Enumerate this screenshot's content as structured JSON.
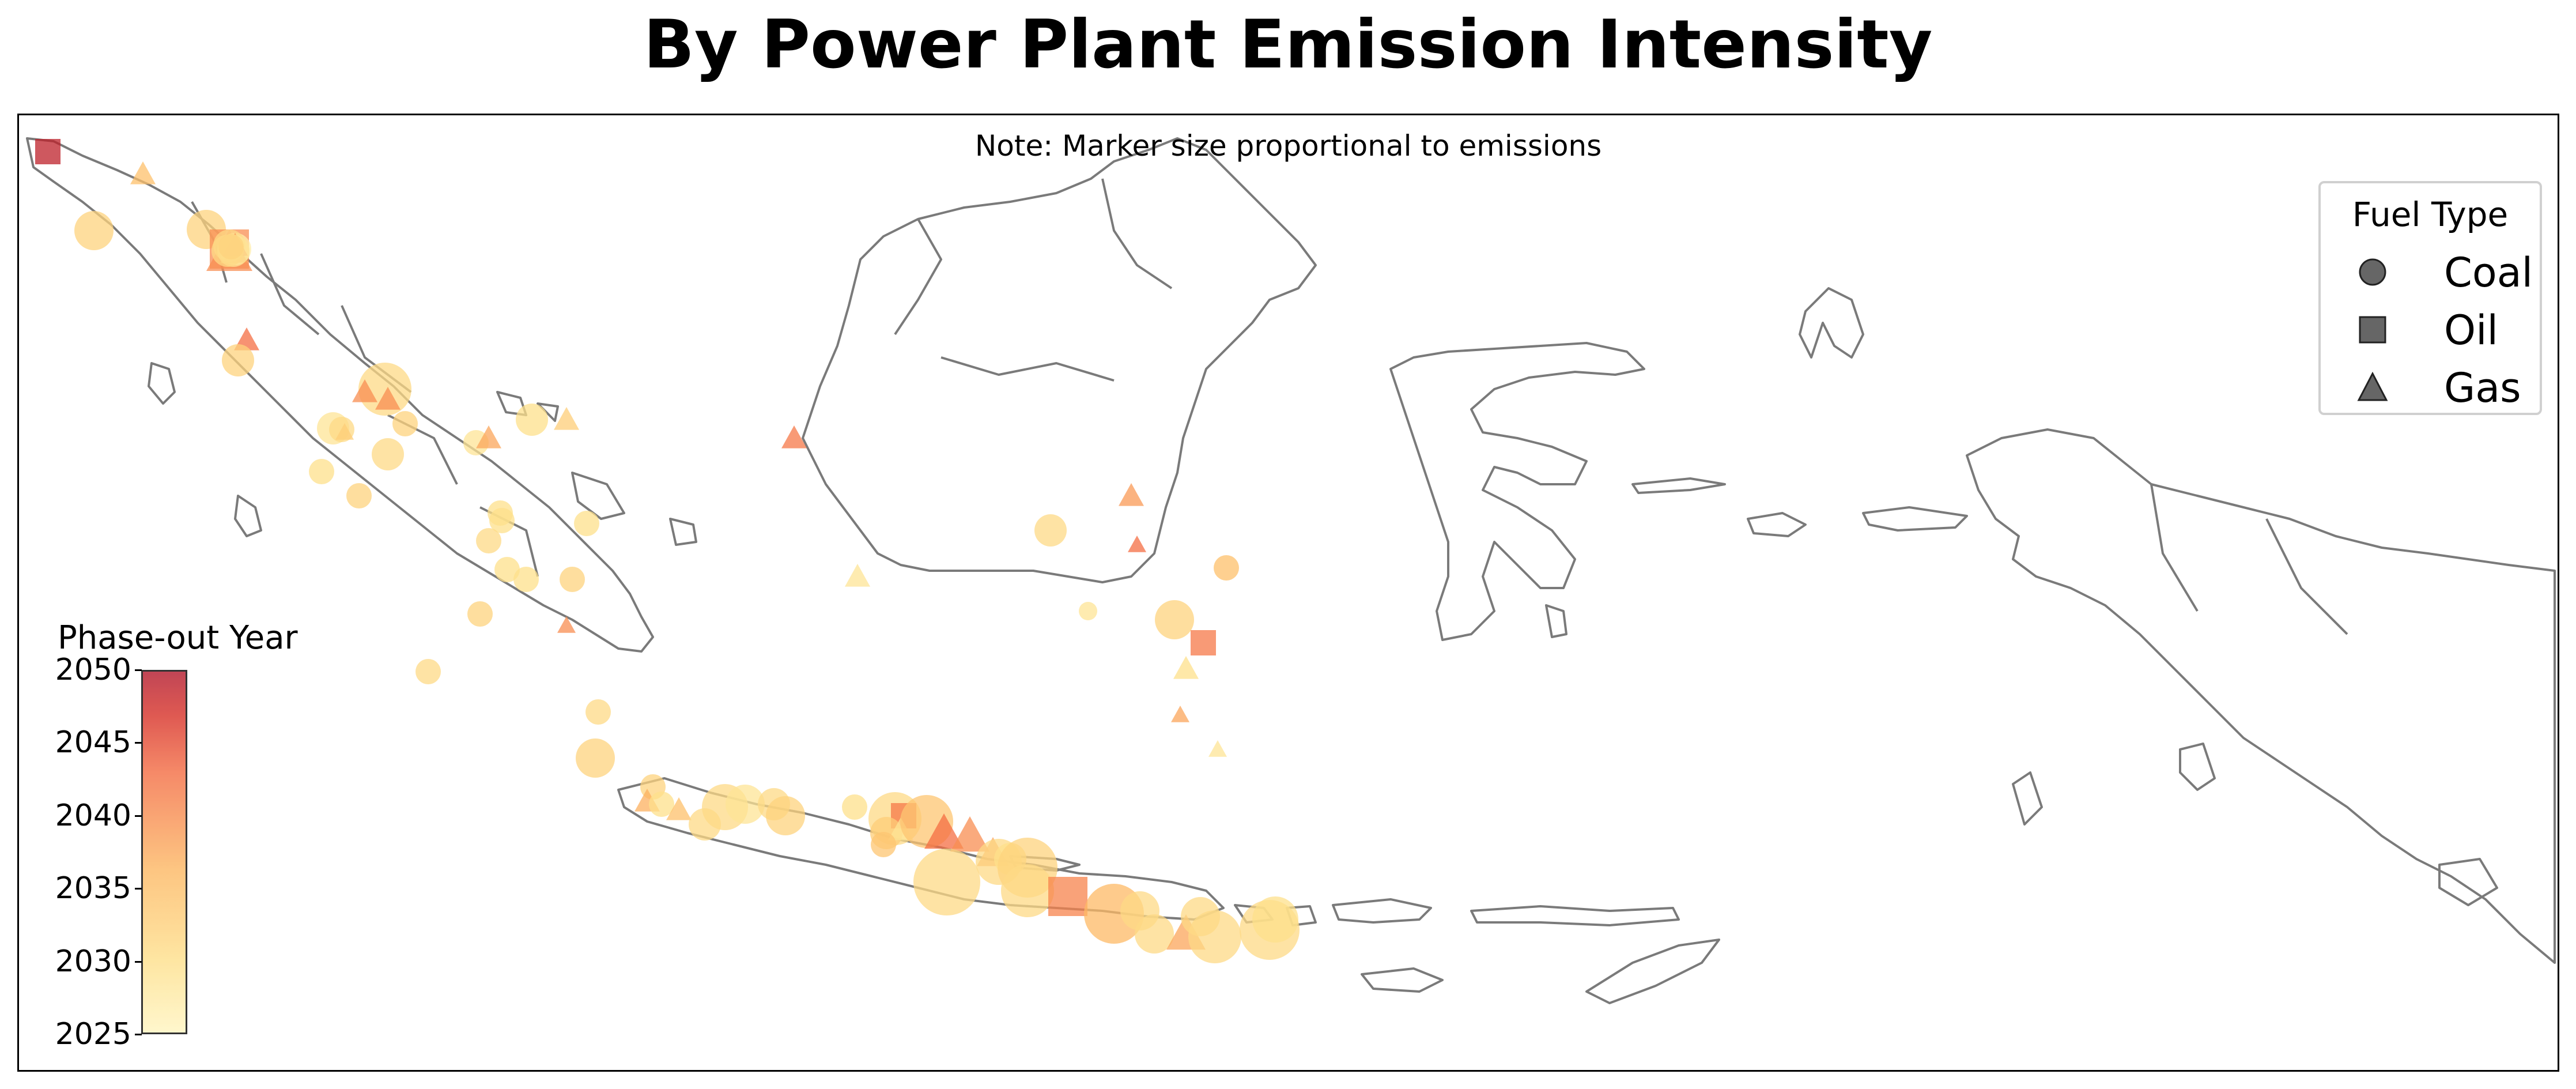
{
  "title": "By Power Plant Emission Intensity",
  "note": "Note: Marker size proportional to emissions",
  "legend": {
    "title": "Fuel Type",
    "items": [
      {
        "label": "Coal",
        "shape": "circle"
      },
      {
        "label": "Oil",
        "shape": "square"
      },
      {
        "label": "Gas",
        "shape": "triangle"
      }
    ]
  },
  "colorbar": {
    "title": "Phase-out Year",
    "ticks": [
      "2050",
      "2045",
      "2040",
      "2035",
      "2030",
      "2025"
    ],
    "colors": [
      "#fff5c0",
      "#fee08b",
      "#fdb863",
      "#f46d43",
      "#d73027",
      "#b2182b"
    ]
  },
  "colors": {
    "coastline": "#7a7a7a",
    "frame": "#000000"
  },
  "plants": [
    {
      "fuel": "Oil",
      "year": 2049,
      "emissions": 2
    },
    {
      "fuel": "Gas",
      "year": 2035,
      "emissions": 2
    },
    {
      "fuel": "Coal",
      "year": 2032,
      "emissions": 4
    },
    {
      "fuel": "Coal",
      "year": 2032,
      "emissions": 4
    },
    {
      "fuel": "Oil",
      "year": 2040,
      "emissions": 4
    },
    {
      "fuel": "Gas",
      "year": 2040,
      "emissions": 5
    },
    {
      "fuel": "Coal",
      "year": 2027,
      "emissions": 3
    },
    {
      "fuel": "Gas",
      "year": 2038,
      "emissions": 2
    },
    {
      "fuel": "Gas",
      "year": 2035,
      "emissions": 1
    },
    {
      "fuel": "Coal",
      "year": 2031,
      "emissions": 3
    },
    {
      "fuel": "Gas",
      "year": 2040,
      "emissions": 2
    },
    {
      "fuel": "Coal",
      "year": 2029,
      "emissions": 3
    },
    {
      "fuel": "Coal",
      "year": 2031,
      "emissions": 3
    },
    {
      "fuel": "Coal",
      "year": 2032,
      "emissions": 2
    },
    {
      "fuel": "Gas",
      "year": 2043,
      "emissions": 2
    },
    {
      "fuel": "Coal",
      "year": 2032,
      "emissions": 3
    },
    {
      "fuel": "Coal",
      "year": 2031,
      "emissions": 6
    },
    {
      "fuel": "Gas",
      "year": 2040,
      "emissions": 2
    },
    {
      "fuel": "Gas",
      "year": 2040,
      "emissions": 2
    },
    {
      "fuel": "Coal",
      "year": 2029,
      "emissions": 3
    },
    {
      "fuel": "Coal",
      "year": 2031,
      "emissions": 2
    },
    {
      "fuel": "Gas",
      "year": 2033,
      "emissions": 1
    },
    {
      "fuel": "Coal",
      "year": 2032,
      "emissions": 2
    },
    {
      "fuel": "Coal",
      "year": 2032,
      "emissions": 2
    },
    {
      "fuel": "Coal",
      "year": 2031,
      "emissions": 3
    },
    {
      "fuel": "Coal",
      "year": 2030,
      "emissions": 2
    },
    {
      "fuel": "Coal",
      "year": 2029,
      "emissions": 2
    },
    {
      "fuel": "Gas",
      "year": 2038,
      "emissions": 2
    },
    {
      "fuel": "Coal",
      "year": 2030,
      "emissions": 3
    },
    {
      "fuel": "Gas",
      "year": 2033,
      "emissions": 2
    },
    {
      "fuel": "Coal",
      "year": 2030,
      "emissions": 2
    },
    {
      "fuel": "Coal",
      "year": 2030,
      "emissions": 2
    },
    {
      "fuel": "Coal",
      "year": 2030,
      "emissions": 2
    },
    {
      "fuel": "Coal",
      "year": 2031,
      "emissions": 2
    },
    {
      "fuel": "Coal",
      "year": 2030,
      "emissions": 2
    },
    {
      "fuel": "Coal",
      "year": 2030,
      "emissions": 2
    },
    {
      "fuel": "Coal",
      "year": 2032,
      "emissions": 2
    },
    {
      "fuel": "Gas",
      "year": 2040,
      "emissions": 1
    },
    {
      "fuel": "Coal",
      "year": 2032,
      "emissions": 2
    },
    {
      "fuel": "Coal",
      "year": 2031,
      "emissions": 2
    },
    {
      "fuel": "Coal",
      "year": 2031,
      "emissions": 2
    },
    {
      "fuel": "Coal",
      "year": 2032,
      "emissions": 4
    },
    {
      "fuel": "Coal",
      "year": 2032,
      "emissions": 2
    },
    {
      "fuel": "Gas",
      "year": 2037,
      "emissions": 2
    },
    {
      "fuel": "Coal",
      "year": 2030,
      "emissions": 2
    },
    {
      "fuel": "Gas",
      "year": 2035,
      "emissions": 2
    },
    {
      "fuel": "Coal",
      "year": 2031,
      "emissions": 3
    },
    {
      "fuel": "Coal",
      "year": 2031,
      "emissions": 5
    },
    {
      "fuel": "Coal",
      "year": 2029,
      "emissions": 4
    },
    {
      "fuel": "Coal",
      "year": 2031,
      "emissions": 3
    },
    {
      "fuel": "Coal",
      "year": 2032,
      "emissions": 4
    },
    {
      "fuel": "Coal",
      "year": 2030,
      "emissions": 2
    },
    {
      "fuel": "Coal",
      "year": 2031,
      "emissions": 6
    },
    {
      "fuel": "Oil",
      "year": 2042,
      "emissions": 2
    },
    {
      "fuel": "Coal",
      "year": 2033,
      "emissions": 3
    },
    {
      "fuel": "Gas",
      "year": 2029,
      "emissions": 2
    },
    {
      "fuel": "Coal",
      "year": 2034,
      "emissions": 2
    },
    {
      "fuel": "Coal",
      "year": 2034,
      "emissions": 6
    },
    {
      "fuel": "Gas",
      "year": 2043,
      "emissions": 4
    },
    {
      "fuel": "Gas",
      "year": 2040,
      "emissions": 4
    },
    {
      "fuel": "Gas",
      "year": 2038,
      "emissions": 3
    },
    {
      "fuel": "Coal",
      "year": 2031,
      "emissions": 5
    },
    {
      "fuel": "Coal",
      "year": 2030,
      "emissions": 3
    },
    {
      "fuel": "Coal",
      "year": 2032,
      "emissions": 7
    },
    {
      "fuel": "Coal",
      "year": 2031,
      "emissions": 8
    },
    {
      "fuel": "Coal",
      "year": 2031,
      "emissions": 6
    },
    {
      "fuel": "Oil",
      "year": 2041,
      "emissions": 4
    },
    {
      "fuel": "Coal",
      "year": 2036,
      "emissions": 7
    },
    {
      "fuel": "Coal",
      "year": 2031,
      "emissions": 4
    },
    {
      "fuel": "Coal",
      "year": 2031,
      "emissions": 4
    },
    {
      "fuel": "Gas",
      "year": 2038,
      "emissions": 4
    },
    {
      "fuel": "Coal",
      "year": 2031,
      "emissions": 6
    },
    {
      "fuel": "Coal",
      "year": 2031,
      "emissions": 4
    },
    {
      "fuel": "Coal",
      "year": 2031,
      "emissions": 7
    },
    {
      "fuel": "Coal",
      "year": 2030,
      "emissions": 5
    },
    {
      "fuel": "Gas",
      "year": 2042,
      "emissions": 2
    },
    {
      "fuel": "Coal",
      "year": 2031,
      "emissions": 3
    },
    {
      "fuel": "Gas",
      "year": 2029,
      "emissions": 2
    },
    {
      "fuel": "Gas",
      "year": 2039,
      "emissions": 2
    },
    {
      "fuel": "Gas",
      "year": 2043,
      "emissions": 1
    },
    {
      "fuel": "Coal",
      "year": 2029,
      "emissions": 1
    },
    {
      "fuel": "Coal",
      "year": 2032,
      "emissions": 4
    },
    {
      "fuel": "Oil",
      "year": 2042,
      "emissions": 2
    },
    {
      "fuel": "Gas",
      "year": 2030,
      "emissions": 2
    },
    {
      "fuel": "Coal",
      "year": 2035,
      "emissions": 2
    },
    {
      "fuel": "Gas",
      "year": 2038,
      "emissions": 1
    },
    {
      "fuel": "Gas",
      "year": 2029,
      "emissions": 1
    }
  ]
}
